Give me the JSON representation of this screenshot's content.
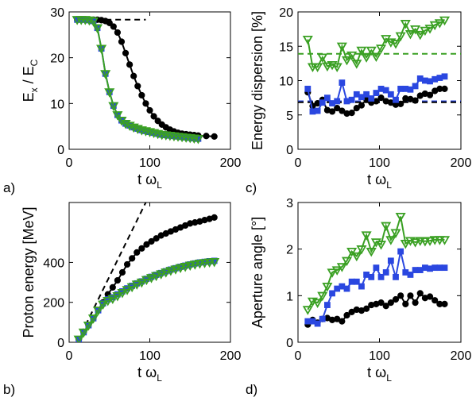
{
  "chart_data": [
    {
      "type": "line",
      "panel_label": "a)",
      "xlabel_main": "t ω",
      "xlabel_sub": "L",
      "ylabel_parts": [
        {
          "text": "E",
          "sub": false
        },
        {
          "text": "x",
          "sub": true
        },
        {
          "text": " / E",
          "sub": false
        },
        {
          "text": "C",
          "sub": true
        }
      ],
      "xlim": [
        0,
        200
      ],
      "ylim": [
        0,
        30
      ],
      "xticks": [
        0,
        100,
        200
      ],
      "yticks": [
        0,
        10,
        20,
        30
      ],
      "reference_lines": [
        {
          "y": 28.3,
          "x_range": [
            10,
            95
          ],
          "color": "#000000",
          "style": "dashed"
        }
      ],
      "series": [
        {
          "color": "#000000",
          "marker": "circle",
          "x": [
            10,
            15,
            20,
            25,
            30,
            35,
            40,
            45,
            50,
            55,
            60,
            65,
            70,
            75,
            80,
            85,
            90,
            95,
            100,
            105,
            110,
            115,
            120,
            125,
            130,
            135,
            140,
            145,
            150,
            155,
            160,
            170,
            180
          ],
          "y": [
            28.3,
            28.3,
            28.3,
            28.3,
            28.3,
            28.3,
            28.2,
            28,
            27.6,
            26.8,
            25.5,
            23.5,
            21,
            18.5,
            16,
            13.8,
            11.8,
            10,
            8.5,
            7.2,
            6.2,
            5.4,
            4.8,
            4.3,
            3.9,
            3.6,
            3.4,
            3.3,
            3.2,
            3.1,
            3,
            2.9,
            2.8
          ]
        },
        {
          "color": "#2a47e0",
          "marker": "square",
          "x": [
            10,
            15,
            20,
            25,
            30,
            35,
            40,
            45,
            50,
            55,
            60,
            65,
            70,
            75,
            80,
            85,
            90,
            95,
            100,
            105,
            110,
            115,
            120,
            125,
            130,
            135,
            140,
            145,
            150,
            155,
            160
          ],
          "y": [
            28.3,
            28.3,
            28.3,
            28.2,
            28,
            26.5,
            22,
            16.5,
            12.5,
            9.5,
            7.5,
            6.3,
            5.6,
            5.2,
            4.8,
            4.5,
            4.2,
            4,
            3.8,
            3.6,
            3.4,
            3.2,
            3.1,
            3,
            2.9,
            2.8,
            2.7,
            2.6,
            2.5,
            2.4,
            2.3
          ]
        },
        {
          "color": "#3aa023",
          "marker": "triangle-down",
          "x": [
            10,
            15,
            20,
            25,
            30,
            35,
            40,
            45,
            50,
            55,
            60,
            65,
            70,
            75,
            80,
            85,
            90,
            95,
            100,
            105,
            110,
            115,
            120,
            125,
            130,
            135,
            140,
            145,
            150,
            155,
            160
          ],
          "y": [
            28.3,
            28.3,
            28.3,
            28.2,
            28,
            26.5,
            22,
            16.5,
            12.5,
            9.5,
            7.5,
            6.3,
            5.6,
            5.2,
            4.8,
            4.5,
            4.2,
            4,
            3.8,
            3.6,
            3.4,
            3.2,
            3.1,
            3,
            2.9,
            2.8,
            2.7,
            2.6,
            2.5,
            2.4,
            2.3
          ]
        }
      ]
    },
    {
      "type": "line",
      "panel_label": "c)",
      "xlabel_main": "t ω",
      "xlabel_sub": "L",
      "ylabel_parts": [
        {
          "text": "Energy dispersion [%]",
          "sub": false
        }
      ],
      "xlim": [
        0,
        200
      ],
      "ylim": [
        0,
        20
      ],
      "xticks": [
        0,
        100,
        200
      ],
      "yticks": [
        0,
        5,
        10,
        15,
        20
      ],
      "reference_lines": [
        {
          "y": 13.9,
          "x_range": [
            0,
            200
          ],
          "color": "#3aa023",
          "style": "dashed"
        },
        {
          "y": 7.0,
          "x_range": [
            0,
            200
          ],
          "color": "#2a47e0",
          "style": "dashed"
        },
        {
          "y": 6.85,
          "x_range": [
            0,
            200
          ],
          "color": "#000000",
          "style": "dashed"
        }
      ],
      "series": [
        {
          "color": "#000000",
          "marker": "circle",
          "x": [
            12,
            18,
            24,
            30,
            36,
            42,
            48,
            54,
            60,
            66,
            72,
            78,
            84,
            90,
            96,
            102,
            108,
            114,
            120,
            126,
            132,
            138,
            144,
            150,
            156,
            162,
            168,
            174,
            180
          ],
          "y": [
            8.3,
            6.3,
            6.7,
            7.2,
            5.7,
            5.5,
            6.0,
            5.6,
            5.2,
            5.3,
            6.0,
            6.4,
            7.3,
            6.8,
            7.0,
            7.5,
            7.0,
            6.8,
            6.5,
            6.6,
            7.4,
            7.3,
            7.1,
            7.8,
            8.1,
            7.9,
            8.5,
            8.8,
            8.8
          ]
        },
        {
          "color": "#2a47e0",
          "marker": "square",
          "x": [
            12,
            18,
            24,
            30,
            36,
            42,
            48,
            54,
            60,
            66,
            72,
            78,
            84,
            90,
            96,
            102,
            108,
            114,
            120,
            126,
            132,
            138,
            144,
            150,
            156,
            162,
            168,
            174,
            180
          ],
          "y": [
            8.8,
            5.5,
            5.6,
            6.8,
            7.5,
            6.7,
            7.0,
            9.7,
            7.0,
            7.2,
            8.0,
            7.6,
            8.0,
            7.4,
            8.2,
            8.8,
            8.6,
            8.0,
            7.2,
            8.8,
            8.8,
            8.7,
            9.2,
            10.3,
            10.0,
            9.9,
            10.2,
            10.4,
            10.6
          ]
        },
        {
          "color": "#3aa023",
          "marker": "triangle-down",
          "x": [
            12,
            18,
            24,
            30,
            36,
            42,
            48,
            54,
            60,
            66,
            72,
            78,
            84,
            90,
            96,
            102,
            108,
            114,
            120,
            126,
            132,
            138,
            144,
            150,
            156,
            162,
            168,
            174,
            180
          ],
          "y": [
            16.0,
            12.0,
            12.0,
            13.4,
            12.1,
            12.3,
            12.0,
            15.0,
            13.0,
            13.7,
            12.5,
            14.4,
            13.4,
            14.4,
            13.5,
            14.7,
            16.1,
            15.6,
            15.4,
            16.5,
            18.3,
            16.8,
            17.5,
            16.7,
            17.3,
            17.6,
            18.1,
            18.4,
            18.8
          ]
        }
      ]
    },
    {
      "type": "line",
      "panel_label": "b)",
      "xlabel_main": "t ω",
      "xlabel_sub": "L",
      "ylabel_parts": [
        {
          "text": "Proton energy [MeV]",
          "sub": false
        }
      ],
      "xlim": [
        0,
        200
      ],
      "ylim": [
        0,
        700
      ],
      "xticks": [
        0,
        100,
        200
      ],
      "yticks": [
        0,
        200,
        400
      ],
      "reference_lines": [
        {
          "points": [
            [
              10,
              0
            ],
            [
              95,
              700
            ]
          ],
          "color": "#000000",
          "style": "dashed"
        }
      ],
      "series": [
        {
          "color": "#000000",
          "marker": "circle",
          "x": [
            12,
            18,
            24,
            30,
            36,
            42,
            48,
            54,
            60,
            66,
            72,
            78,
            84,
            90,
            96,
            102,
            108,
            114,
            120,
            126,
            132,
            138,
            144,
            150,
            156,
            162,
            168,
            174,
            180
          ],
          "y": [
            15,
            50,
            85,
            120,
            160,
            200,
            240,
            275,
            310,
            350,
            390,
            420,
            450,
            470,
            490,
            505,
            520,
            535,
            545,
            555,
            565,
            575,
            585,
            595,
            600,
            605,
            612,
            618,
            625
          ]
        },
        {
          "color": "#2a47e0",
          "marker": "square",
          "x": [
            12,
            18,
            24,
            30,
            36,
            42,
            48,
            54,
            60,
            66,
            72,
            78,
            84,
            90,
            96,
            102,
            108,
            114,
            120,
            126,
            132,
            138,
            144,
            150,
            156,
            162,
            168,
            174,
            180
          ],
          "y": [
            15,
            50,
            85,
            120,
            160,
            195,
            215,
            225,
            240,
            255,
            270,
            283,
            295,
            305,
            318,
            328,
            338,
            347,
            356,
            364,
            371,
            378,
            384,
            390,
            395,
            400,
            403,
            406,
            408
          ]
        },
        {
          "color": "#3aa023",
          "marker": "triangle-down",
          "x": [
            12,
            18,
            24,
            30,
            36,
            42,
            48,
            54,
            60,
            66,
            72,
            78,
            84,
            90,
            96,
            102,
            108,
            114,
            120,
            126,
            132,
            138,
            144,
            150,
            156,
            162,
            168,
            174,
            180
          ],
          "y": [
            15,
            50,
            85,
            120,
            160,
            190,
            208,
            218,
            232,
            248,
            263,
            277,
            290,
            300,
            313,
            323,
            333,
            342,
            351,
            359,
            366,
            373,
            379,
            385,
            390,
            395,
            398,
            401,
            403
          ]
        }
      ]
    },
    {
      "type": "line",
      "panel_label": "d)",
      "xlabel_main": "t ω",
      "xlabel_sub": "L",
      "ylabel_parts": [
        {
          "text": "Aperture angle [°]",
          "sub": false
        }
      ],
      "xlim": [
        0,
        200
      ],
      "ylim": [
        0,
        3
      ],
      "xticks": [
        0,
        100,
        200
      ],
      "yticks": [
        0,
        1,
        2,
        3
      ],
      "reference_lines": [],
      "series": [
        {
          "color": "#000000",
          "marker": "circle",
          "x": [
            12,
            18,
            24,
            30,
            36,
            42,
            48,
            54,
            60,
            66,
            72,
            78,
            84,
            90,
            96,
            102,
            108,
            114,
            120,
            126,
            132,
            138,
            144,
            150,
            156,
            162,
            168,
            174,
            180
          ],
          "y": [
            0.38,
            0.48,
            0.42,
            0.5,
            0.52,
            0.48,
            0.5,
            0.45,
            0.58,
            0.65,
            0.7,
            0.68,
            0.72,
            0.8,
            0.82,
            0.85,
            0.78,
            0.85,
            0.92,
            1.0,
            0.82,
            1.0,
            0.85,
            1.05,
            0.95,
            0.98,
            0.9,
            0.82,
            0.82
          ]
        },
        {
          "color": "#2a47e0",
          "marker": "square",
          "x": [
            12,
            18,
            24,
            30,
            36,
            42,
            48,
            54,
            60,
            66,
            72,
            78,
            84,
            90,
            96,
            102,
            108,
            114,
            120,
            126,
            132,
            138,
            144,
            150,
            156,
            162,
            168,
            174,
            180
          ],
          "y": [
            0.45,
            0.45,
            0.4,
            0.5,
            0.8,
            1.05,
            1.15,
            1.2,
            1.15,
            1.3,
            1.3,
            1.2,
            1.45,
            1.4,
            1.6,
            1.4,
            1.5,
            1.75,
            1.4,
            1.95,
            1.5,
            1.45,
            1.55,
            1.55,
            1.6,
            1.58,
            1.6,
            1.6,
            1.6
          ]
        },
        {
          "color": "#3aa023",
          "marker": "triangle-down",
          "x": [
            12,
            18,
            24,
            30,
            36,
            42,
            48,
            54,
            60,
            66,
            72,
            78,
            84,
            90,
            96,
            102,
            108,
            114,
            120,
            126,
            132,
            138,
            144,
            150,
            156,
            162,
            168,
            174,
            180
          ],
          "y": [
            0.7,
            0.88,
            0.85,
            1.0,
            1.2,
            1.5,
            1.55,
            1.62,
            1.75,
            1.95,
            1.85,
            2.0,
            2.3,
            1.95,
            2.15,
            2.1,
            2.5,
            2.2,
            2.35,
            2.7,
            2.12,
            2.18,
            2.15,
            2.18,
            2.17,
            2.18,
            2.2,
            2.2,
            2.2
          ]
        }
      ]
    }
  ]
}
